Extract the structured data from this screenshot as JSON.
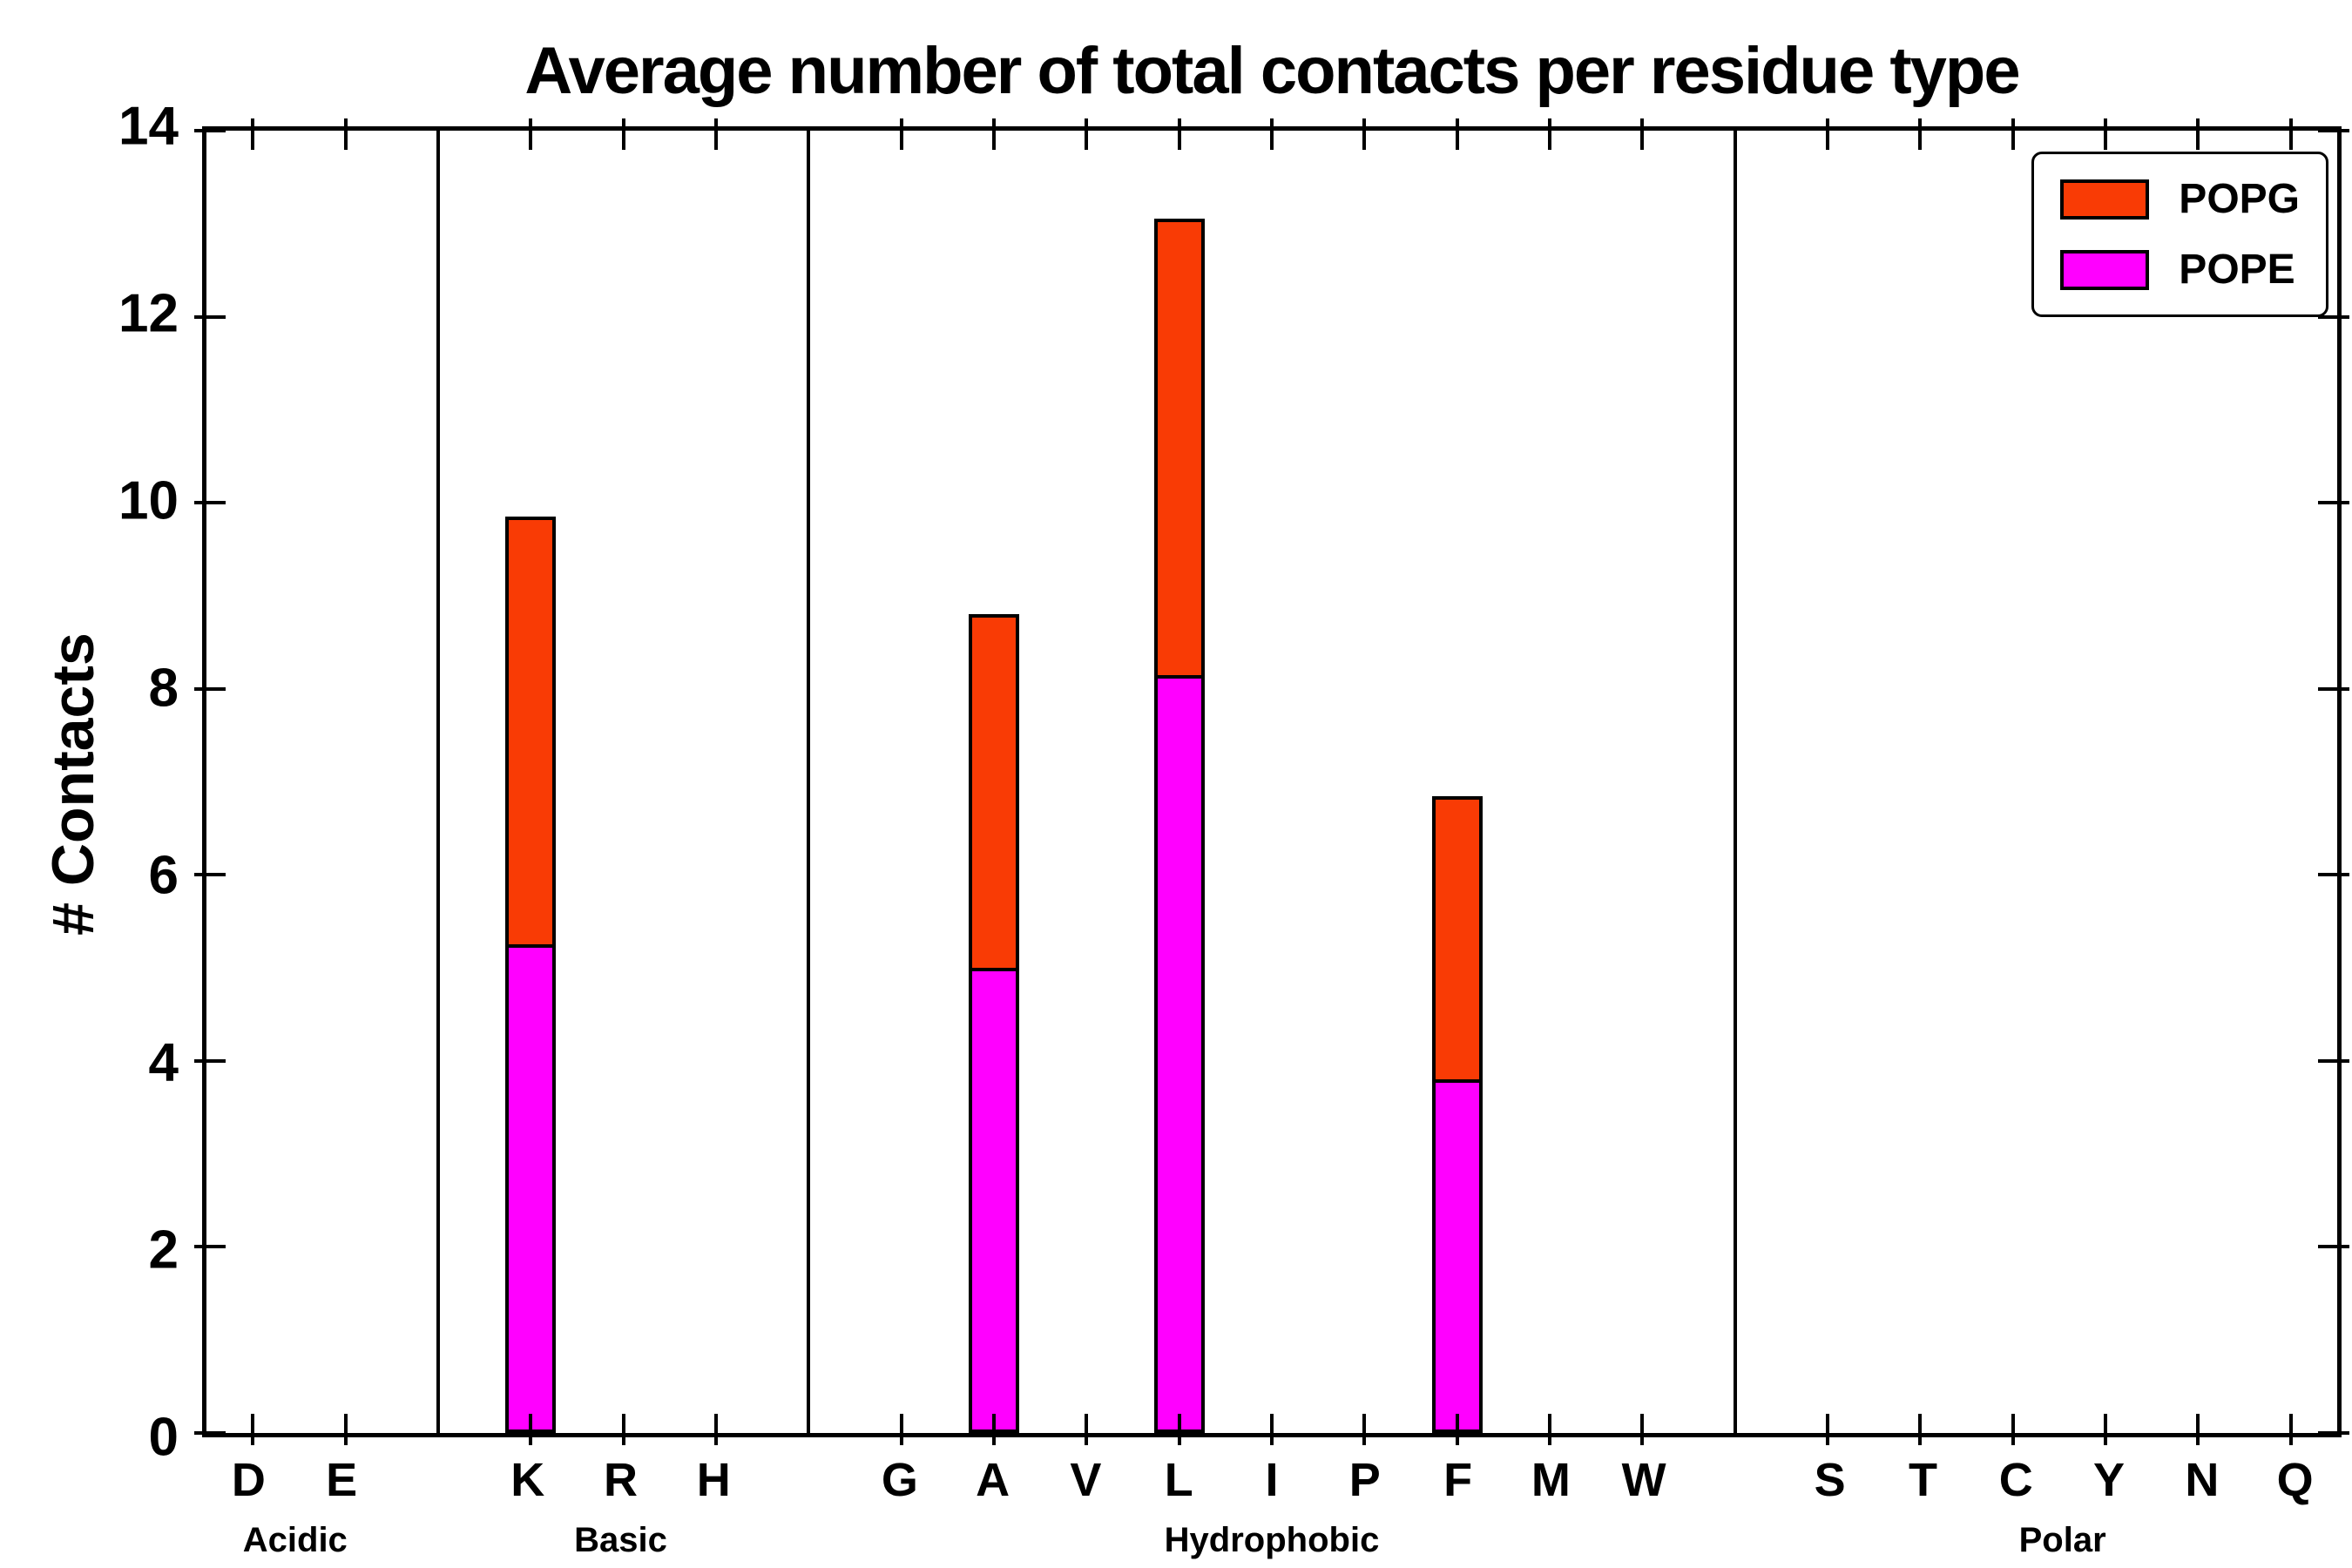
{
  "chart_data": {
    "type": "bar",
    "stacked": true,
    "title": "Average number of total contacts per residue type",
    "ylabel": "# Contacts",
    "ylim": [
      0,
      14
    ],
    "yticks": [
      0,
      2,
      4,
      6,
      8,
      10,
      12,
      14
    ],
    "grid": false,
    "groups": [
      {
        "label": "Acidic",
        "categories": [
          "D",
          "E"
        ]
      },
      {
        "label": "Basic",
        "categories": [
          "K",
          "R",
          "H"
        ]
      },
      {
        "label": "Hydrophobic",
        "categories": [
          "G",
          "A",
          "V",
          "L",
          "I",
          "P",
          "F",
          "M",
          "W"
        ]
      },
      {
        "label": "Polar",
        "categories": [
          "S",
          "T",
          "C",
          "Y",
          "N",
          "Q"
        ]
      }
    ],
    "categories": [
      "D",
      "E",
      "K",
      "R",
      "H",
      "G",
      "A",
      "V",
      "L",
      "I",
      "P",
      "F",
      "M",
      "W",
      "S",
      "T",
      "C",
      "Y",
      "N",
      "Q"
    ],
    "series": [
      {
        "name": "POPE",
        "color": "#FF00FF",
        "values": [
          0,
          0,
          5.25,
          0,
          0,
          0,
          5.0,
          0,
          8.15,
          0,
          0,
          3.8,
          0,
          0,
          0,
          0,
          0,
          0,
          0,
          0
        ]
      },
      {
        "name": "POPG",
        "color": "#F93B05",
        "values": [
          0,
          0,
          4.6,
          0,
          0,
          0,
          3.8,
          0,
          4.9,
          0,
          0,
          3.05,
          0,
          0,
          0,
          0,
          0,
          0,
          0,
          0
        ]
      }
    ],
    "totals": {
      "K": 9.85,
      "A": 8.8,
      "L": 13.05,
      "F": 6.85
    },
    "legend": {
      "position": "upper right",
      "entries": [
        {
          "label": "POPG",
          "color": "#F93B05"
        },
        {
          "label": "POPE",
          "color": "#FF00FF"
        }
      ]
    }
  }
}
